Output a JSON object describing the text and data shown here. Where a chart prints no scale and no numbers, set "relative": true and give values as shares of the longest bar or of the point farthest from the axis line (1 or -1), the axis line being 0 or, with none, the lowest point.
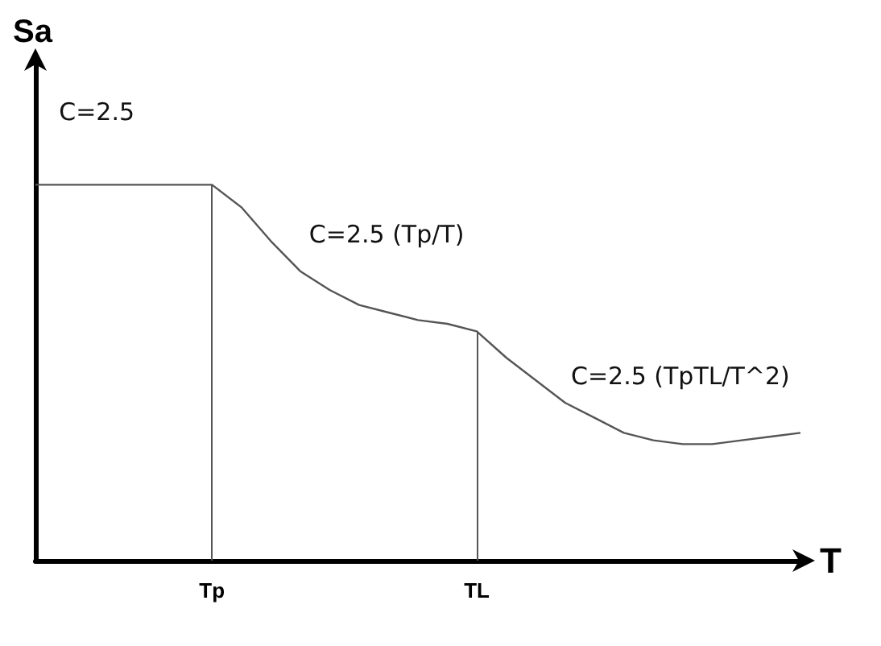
{
  "chart_data": {
    "type": "line",
    "relative": true,
    "xlabel": "T",
    "ylabel": "Sa",
    "marker": "none",
    "color": "#555555",
    "categories": [
      null,
      null,
      null,
      null,
      null,
      null,
      "Tp",
      null,
      null,
      null,
      null,
      null,
      null,
      null,
      null,
      "TL",
      null,
      null,
      null,
      null,
      null,
      null,
      null,
      null,
      null,
      null,
      null
    ],
    "values": [
      1,
      1,
      1,
      1,
      1,
      1,
      1,
      0.94,
      0.85,
      0.77,
      0.72,
      0.68,
      0.66,
      0.64,
      0.63,
      0.61,
      0.54,
      0.48,
      0.42,
      0.38,
      0.34,
      0.32,
      0.31,
      0.31,
      0.32,
      0.33,
      0.34
    ],
    "ref_lines": [
      {
        "axis": "x",
        "value": "Tp"
      },
      {
        "axis": "x",
        "value": "TL"
      }
    ],
    "annotations": [
      "C=2.5",
      "C=2.5 (Tp/T)",
      "C=2.5 (TpTL/T^2)"
    ]
  }
}
